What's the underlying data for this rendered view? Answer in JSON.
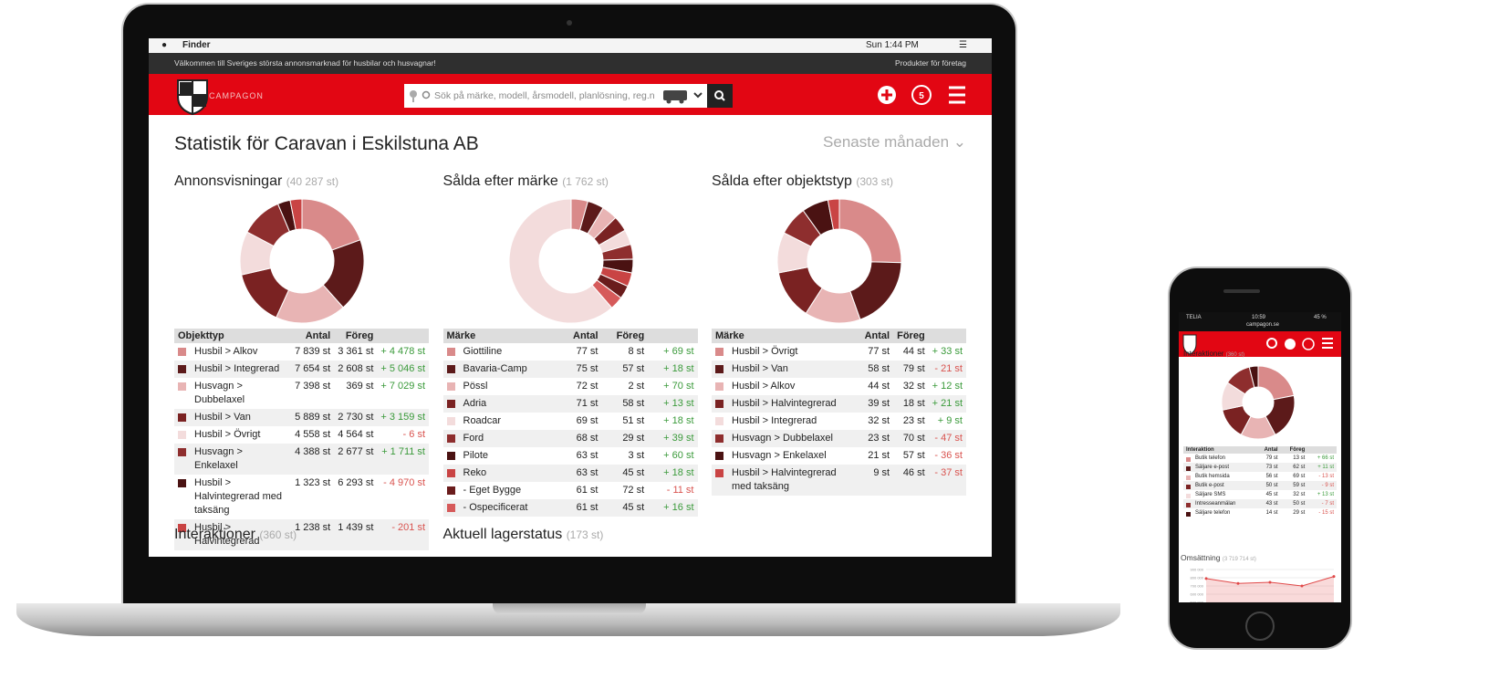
{
  "menubar": {
    "app": "Finder",
    "clock": "Sun 1:44 PM"
  },
  "site": {
    "welcome": "Välkommen till Sveriges största annonsmarknad för husbilar och husvagnar!",
    "business": "Produkter för företag",
    "logo": "CAMPAGON",
    "search": "Sök på märke, modell, årsmodell, planlösning, reg.n"
  },
  "page": {
    "title": "Statistik för Caravan i Eskilstuna AB",
    "period": "Senaste månaden"
  },
  "palette": [
    "#d98a8a",
    "#5c1a1a",
    "#e8b4b4",
    "#7a2222",
    "#f3dcdc",
    "#8e2e2e",
    "#4a1212",
    "#c94444",
    "#6a1c1c",
    "#d65a5a"
  ],
  "panels": [
    {
      "title": "Annonsvisningar",
      "count": {
        "value": 40287,
        "label": "(40 287 st)"
      },
      "columns": [
        "Objekttyp",
        "Antal",
        "Föreg"
      ],
      "rows": [
        {
          "name": "Husbil > Alkov",
          "value": 7839,
          "label": "7 839 st",
          "previous": "3 361 st",
          "change": "+ 4 478 st"
        },
        {
          "name": "Husbil > Integrerad",
          "value": 7654,
          "label": "7 654 st",
          "previous": "2 608 st",
          "change": "+ 5 046 st"
        },
        {
          "name": "Husvagn > Dubbelaxel",
          "value": 7398,
          "label": "7 398 st",
          "previous": "369 st",
          "change": "+ 7 029 st"
        },
        {
          "name": "Husbil > Van",
          "value": 5889,
          "label": "5 889 st",
          "previous": "2 730 st",
          "change": "+ 3 159 st"
        },
        {
          "name": "Husbil > Övrigt",
          "value": 4558,
          "label": "4 558 st",
          "previous": "4 564 st",
          "change": "- 6 st"
        },
        {
          "name": "Husvagn > Enkelaxel",
          "value": 4388,
          "label": "4 388 st",
          "previous": "2 677 st",
          "change": "+ 1 711 st"
        },
        {
          "name": "Husbil > Halvintegrerad med taksäng",
          "value": 1323,
          "label": "1 323 st",
          "previous": "6 293 st",
          "change": "- 4 970 st"
        },
        {
          "name": "Husbil > Halvintegrerad",
          "value": 1238,
          "label": "1 238 st",
          "previous": "1 439 st",
          "change": "- 201 st"
        }
      ]
    },
    {
      "title": "Sålda efter märke",
      "count": {
        "value": 1762,
        "label": "(1 762 st)"
      },
      "columns": [
        "Märke",
        "Antal",
        "Föreg"
      ],
      "rows": [
        {
          "name": "Giottiline",
          "value": 77,
          "label": "77 st",
          "previous": "8 st",
          "change": "+ 69 st"
        },
        {
          "name": "Bavaria-Camp",
          "value": 75,
          "label": "75 st",
          "previous": "57 st",
          "change": "+ 18 st"
        },
        {
          "name": "Pössl",
          "value": 72,
          "label": "72 st",
          "previous": "2 st",
          "change": "+ 70 st"
        },
        {
          "name": "Adria",
          "value": 71,
          "label": "71 st",
          "previous": "58 st",
          "change": "+ 13 st"
        },
        {
          "name": "Roadcar",
          "value": 69,
          "label": "69 st",
          "previous": "51 st",
          "change": "+ 18 st"
        },
        {
          "name": "Ford",
          "value": 68,
          "label": "68 st",
          "previous": "29 st",
          "change": "+ 39 st"
        },
        {
          "name": "Pilote",
          "value": 63,
          "label": "63 st",
          "previous": "3 st",
          "change": "+ 60 st"
        },
        {
          "name": "Reko",
          "value": 63,
          "label": "63 st",
          "previous": "45 st",
          "change": "+ 18 st"
        },
        {
          "name": "- Eget Bygge",
          "value": 61,
          "label": "61 st",
          "previous": "72 st",
          "change": "- 11 st"
        },
        {
          "name": "- Ospecificerat",
          "value": 61,
          "label": "61 st",
          "previous": "45 st",
          "change": "+ 16 st"
        }
      ]
    },
    {
      "title": "Sålda efter objektstyp",
      "count": {
        "value": 303,
        "label": "(303 st)"
      },
      "columns": [
        "Märke",
        "Antal",
        "Föreg"
      ],
      "rows": [
        {
          "name": "Husbil > Övrigt",
          "value": 77,
          "label": "77 st",
          "previous": "44 st",
          "change": "+ 33 st"
        },
        {
          "name": "Husbil > Van",
          "value": 58,
          "label": "58 st",
          "previous": "79 st",
          "change": "- 21 st"
        },
        {
          "name": "Husbil > Alkov",
          "value": 44,
          "label": "44 st",
          "previous": "32 st",
          "change": "+ 12 st"
        },
        {
          "name": "Husbil > Halvintegrerad",
          "value": 39,
          "label": "39 st",
          "previous": "18 st",
          "change": "+ 21 st"
        },
        {
          "name": "Husbil > Integrerad",
          "value": 32,
          "label": "32 st",
          "previous": "23 st",
          "change": "+ 9 st"
        },
        {
          "name": "Husvagn > Dubbelaxel",
          "value": 23,
          "label": "23 st",
          "previous": "70 st",
          "change": "- 47 st"
        },
        {
          "name": "Husvagn > Enkelaxel",
          "value": 21,
          "label": "21 st",
          "previous": "57 st",
          "change": "- 36 st"
        },
        {
          "name": "Husbil > Halvintegrerad med taksäng",
          "value": 9,
          "label": "9 st",
          "previous": "46 st",
          "change": "- 37 st"
        }
      ]
    }
  ],
  "more_sections": [
    {
      "title": "Interaktioner",
      "count": "(360 st)"
    },
    {
      "title": "Aktuell lagerstatus",
      "count": "(173 st)"
    }
  ],
  "phone": {
    "carrier": "TELIA",
    "clock": "10:59",
    "battery": "45 %",
    "url": "campagon.se",
    "panel": {
      "title": "Interaktioner",
      "count": {
        "value": 360,
        "label": "(360 st)"
      },
      "columns": [
        "Interaktion",
        "Antal",
        "Föreg"
      ],
      "rows": [
        {
          "name": "Butik telefon",
          "value": 79,
          "label": "79 st",
          "previous": "13 st",
          "change": "+ 66 st"
        },
        {
          "name": "Säljare e-post",
          "value": 73,
          "label": "73 st",
          "previous": "62 st",
          "change": "+ 11 st"
        },
        {
          "name": "Butik hemsida",
          "value": 56,
          "label": "56 st",
          "previous": "69 st",
          "change": "- 13 st"
        },
        {
          "name": "Butik e-post",
          "value": 50,
          "label": "50 st",
          "previous": "59 st",
          "change": "- 9 st"
        },
        {
          "name": "Säljare SMS",
          "value": 45,
          "label": "45 st",
          "previous": "32 st",
          "change": "+ 13 st"
        },
        {
          "name": "Intresseanmälan",
          "value": 43,
          "label": "43 st",
          "previous": "50 st",
          "change": "- 7 st"
        },
        {
          "name": "Säljare telefon",
          "value": 14,
          "label": "14 st",
          "previous": "29 st",
          "change": "- 15 st"
        }
      ]
    },
    "chart": {
      "title": "Omsättning",
      "count": "(3 719 714 st)",
      "ylim": [
        500000,
        900000
      ],
      "yticks": [
        {
          "value": 900000,
          "label": "900 000"
        },
        {
          "value": 800000,
          "label": "800 000"
        },
        {
          "value": 700000,
          "label": "700 000"
        },
        {
          "value": 600000,
          "label": "600 000"
        },
        {
          "value": 500000,
          "label": "500 000"
        }
      ],
      "values": [
        790000,
        730000,
        745000,
        700000,
        815000
      ],
      "color": "#e04848"
    }
  }
}
